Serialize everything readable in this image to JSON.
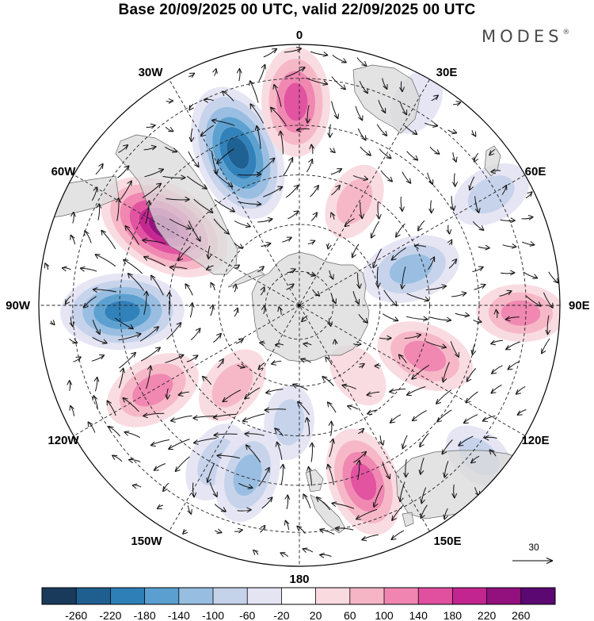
{
  "title": "Base 20/09/2025 00 UTC, valid 22/09/2025 00 UTC",
  "logo": {
    "text": "MODES",
    "mark": "®"
  },
  "map": {
    "projection": "south-polar-stereographic",
    "longitude_labels": {
      "north": "0",
      "south": "180",
      "east": "90E",
      "west": "90W",
      "ne30": "30E",
      "ne60": "60E",
      "se120": "120E",
      "se150": "150E",
      "nw30": "30W",
      "nw60": "60W",
      "sw120": "120W",
      "sw150": "150W"
    }
  },
  "reference_vector": {
    "value": "30"
  },
  "colorbar": {
    "labels": [
      "-260",
      "-220",
      "-180",
      "-140",
      "-100",
      "-60",
      "-20",
      "20",
      "60",
      "100",
      "140",
      "180",
      "220",
      "260"
    ],
    "colors": [
      "#1a3a5c",
      "#1f5f8f",
      "#2e7fb8",
      "#5a9fcf",
      "#97bde0",
      "#c4d2ea",
      "#e4e4f3",
      "#ffffff",
      "#f9dadf",
      "#f5b5c5",
      "#ef85b0",
      "#e0509f",
      "#c2258f",
      "#93107f",
      "#5b0872"
    ]
  },
  "anomalies": [
    {
      "label": "low-atlantic-sw",
      "lon": -22,
      "r": 0.63,
      "value": -260
    },
    {
      "label": "high-atlantic-s",
      "lon": -1,
      "r": 0.78,
      "value": 180
    },
    {
      "label": "high-drake",
      "lon": -60,
      "r": 0.6,
      "value": 260
    },
    {
      "label": "low-bellingshausen",
      "lon": -92,
      "r": 0.68,
      "value": -220
    },
    {
      "label": "high-pacific-120w",
      "lon": -120,
      "r": 0.65,
      "value": 150
    },
    {
      "label": "low-pacific-150w",
      "lon": -152,
      "r": 0.68,
      "value": -100
    },
    {
      "label": "low-pacific-170w",
      "lon": -163,
      "r": 0.68,
      "value": -140
    },
    {
      "label": "high-tasman",
      "lon": 160,
      "r": 0.72,
      "value": 180
    },
    {
      "label": "high-indian-115e",
      "lon": 112,
      "r": 0.52,
      "value": 150
    },
    {
      "label": "low-indian-70e",
      "lon": 72,
      "r": 0.45,
      "value": -150
    },
    {
      "label": "high-indian-90e",
      "lon": 92,
      "r": 0.85,
      "value": 120
    },
    {
      "label": "low-indian-60e",
      "lon": 60,
      "r": 0.85,
      "value": -100
    },
    {
      "label": "high-south-atlantic-30e",
      "lon": 28,
      "r": 0.45,
      "value": 90
    },
    {
      "label": "low-south-africa",
      "lon": 30,
      "r": 0.9,
      "value": -60
    },
    {
      "label": "high-ross",
      "lon": -140,
      "r": 0.4,
      "value": 100
    },
    {
      "label": "low-ross",
      "lon": -175,
      "r": 0.45,
      "value": -80
    },
    {
      "label": "high-east-antarctica",
      "lon": 140,
      "r": 0.35,
      "value": 60
    },
    {
      "label": "low-australia",
      "lon": 130,
      "r": 0.9,
      "value": -80
    }
  ]
}
